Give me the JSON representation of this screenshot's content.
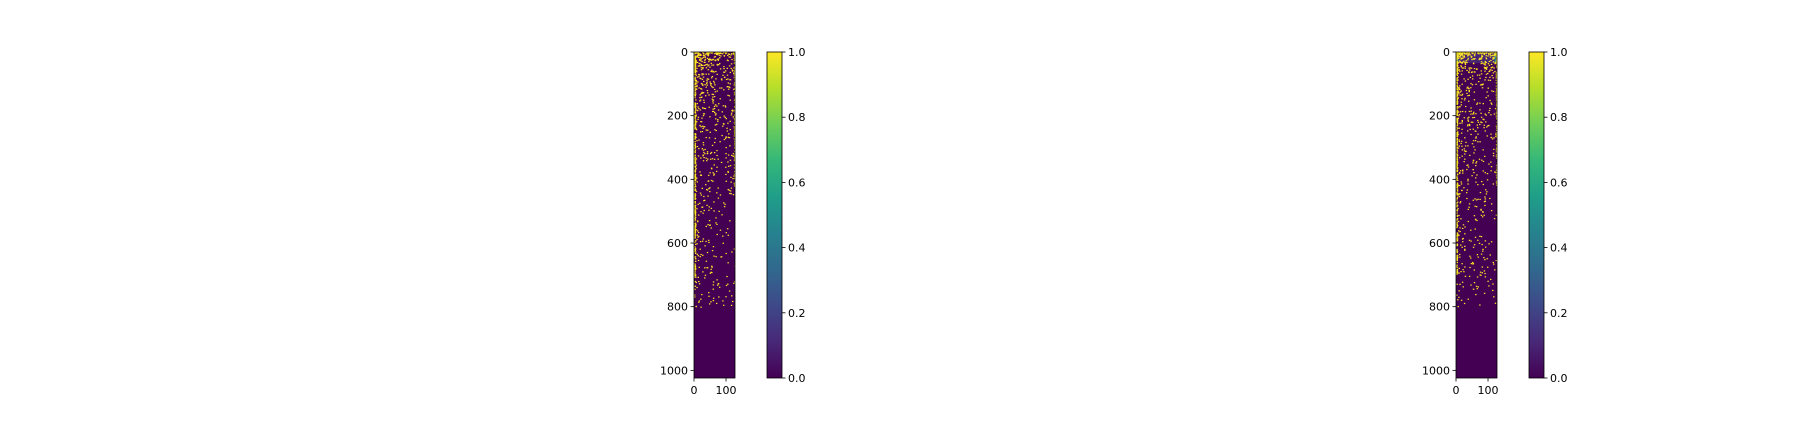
{
  "colormap": {
    "name": "viridis",
    "stops": [
      "#440154",
      "#482878",
      "#3e4989",
      "#31688e",
      "#26828e",
      "#1f9e89",
      "#35b779",
      "#6ece58",
      "#b5de2b",
      "#fde725"
    ]
  },
  "chart_data": [
    {
      "type": "heatmap",
      "title": "",
      "xlabel": "",
      "ylabel": "",
      "x_range": [
        0,
        127
      ],
      "y_range": [
        0,
        1023
      ],
      "y_inverted": true,
      "x_ticks": [
        "0",
        "100"
      ],
      "x_tick_values": [
        0,
        100
      ],
      "y_ticks": [
        "0",
        "200",
        "400",
        "600",
        "800",
        "1000"
      ],
      "y_tick_values": [
        0,
        200,
        400,
        600,
        800,
        1000
      ],
      "colorbar": {
        "range": [
          0.0,
          1.0
        ],
        "ticks": [
          "0.0",
          "0.2",
          "0.4",
          "0.6",
          "0.8",
          "1.0"
        ],
        "tick_values": [
          0.0,
          0.2,
          0.4,
          0.6,
          0.8,
          1.0
        ]
      },
      "background_value": 0.0,
      "highlight_value": 1.0,
      "bands": []
    },
    {
      "type": "heatmap",
      "title": "",
      "xlabel": "",
      "ylabel": "",
      "x_range": [
        0,
        127
      ],
      "y_range": [
        0,
        1023
      ],
      "y_inverted": true,
      "x_ticks": [
        "0",
        "100"
      ],
      "x_tick_values": [
        0,
        100
      ],
      "y_ticks": [
        "0",
        "200",
        "400",
        "600",
        "800",
        "1000"
      ],
      "y_tick_values": [
        0,
        200,
        400,
        600,
        800,
        1000
      ],
      "colorbar": {
        "range": [
          0.0,
          1.0
        ],
        "ticks": [
          "0.0",
          "0.2",
          "0.4",
          "0.6",
          "0.8",
          "1.0"
        ],
        "tick_values": [
          0.0,
          0.2,
          0.4,
          0.6,
          0.8,
          1.0
        ]
      },
      "background_value": 0.0,
      "highlight_value": 1.0,
      "bands": [
        {
          "x": [
            0,
            8
          ],
          "y": [
            0,
            35
          ],
          "value": 0.45
        },
        {
          "x": [
            8,
            120
          ],
          "y": [
            0,
            35
          ],
          "value": 0.1
        },
        {
          "x": [
            120,
            127
          ],
          "y": [
            0,
            35
          ],
          "value": 0.45
        }
      ]
    }
  ]
}
